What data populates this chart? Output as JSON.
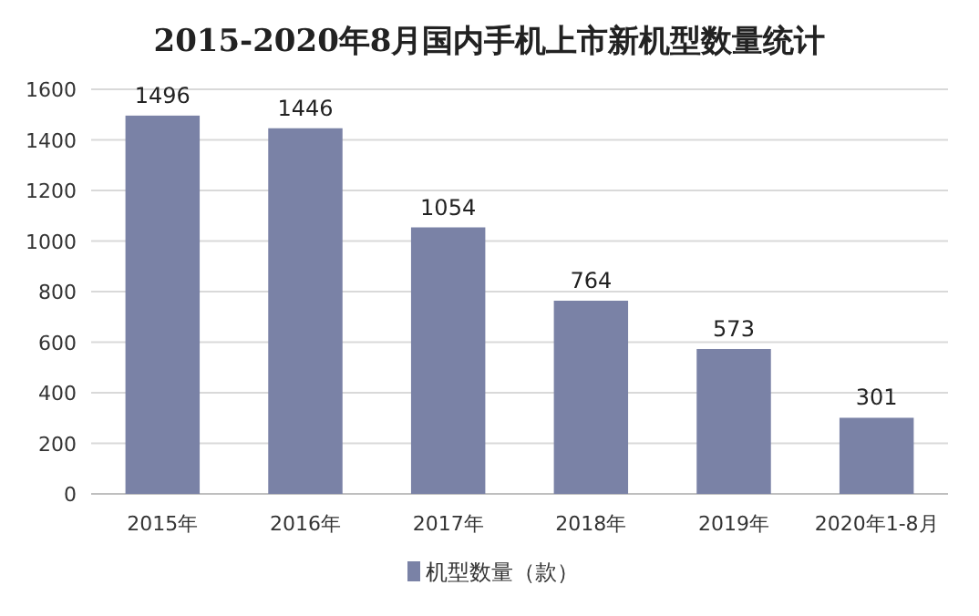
{
  "chart_data": {
    "type": "bar",
    "title": "2015-2020年8月国内手机上市新机型数量统计",
    "categories": [
      "2015年",
      "2016年",
      "2017年",
      "2018年",
      "2019年",
      "2020年1-8月"
    ],
    "series": [
      {
        "name": "机型数量（款）",
        "color": "#7a82a6",
        "values": [
          1496,
          1446,
          1054,
          764,
          573,
          301
        ]
      }
    ],
    "ylim": [
      0,
      1600
    ],
    "yticks": [
      0,
      200,
      400,
      600,
      800,
      1000,
      1200,
      1400,
      1600
    ],
    "grid": "y",
    "data_labels": true,
    "legend": "bottom"
  }
}
